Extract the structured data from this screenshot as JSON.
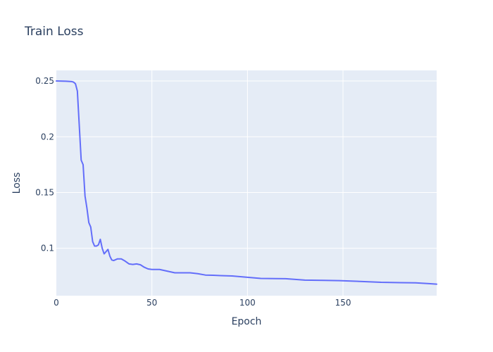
{
  "chart_data": {
    "type": "line",
    "title": "Train Loss",
    "xlabel": "Epoch",
    "ylabel": "Loss",
    "xlim": [
      0,
      199
    ],
    "ylim": [
      0.0575,
      0.2595
    ],
    "x_ticks": [
      0,
      50,
      100,
      150
    ],
    "y_ticks": [
      0.1,
      0.15,
      0.2,
      0.25
    ],
    "x_tick_labels": [
      "0",
      "50",
      "100",
      "150"
    ],
    "y_tick_labels": [
      "0.1",
      "0.15",
      "0.2",
      "0.25"
    ],
    "grid": true,
    "series": [
      {
        "color": "#636efa",
        "x": [
          0,
          5,
          8,
          9,
          10,
          11,
          12,
          13,
          14,
          15,
          16,
          17,
          18,
          19,
          20,
          21,
          22,
          23,
          24,
          25,
          26,
          27,
          28,
          29,
          30,
          32,
          34,
          36,
          38,
          40,
          42,
          44,
          46,
          48,
          50,
          54,
          58,
          62,
          66,
          70,
          74,
          78,
          82,
          86,
          92,
          100,
          107,
          115,
          120,
          130,
          140,
          148,
          160,
          170,
          180,
          188,
          195,
          199
        ],
        "y": [
          0.25,
          0.2498,
          0.2495,
          0.249,
          0.2475,
          0.241,
          0.21,
          0.179,
          0.175,
          0.147,
          0.136,
          0.123,
          0.119,
          0.106,
          0.102,
          0.102,
          0.103,
          0.108,
          0.1,
          0.095,
          0.097,
          0.099,
          0.093,
          0.0895,
          0.089,
          0.0905,
          0.0905,
          0.0885,
          0.086,
          0.0855,
          0.086,
          0.0852,
          0.083,
          0.0815,
          0.081,
          0.081,
          0.0795,
          0.078,
          0.078,
          0.078,
          0.0772,
          0.076,
          0.0758,
          0.0755,
          0.0752,
          0.074,
          0.073,
          0.0728,
          0.0727,
          0.0715,
          0.0712,
          0.071,
          0.0702,
          0.0695,
          0.0692,
          0.069,
          0.0683,
          0.0678
        ]
      }
    ]
  }
}
